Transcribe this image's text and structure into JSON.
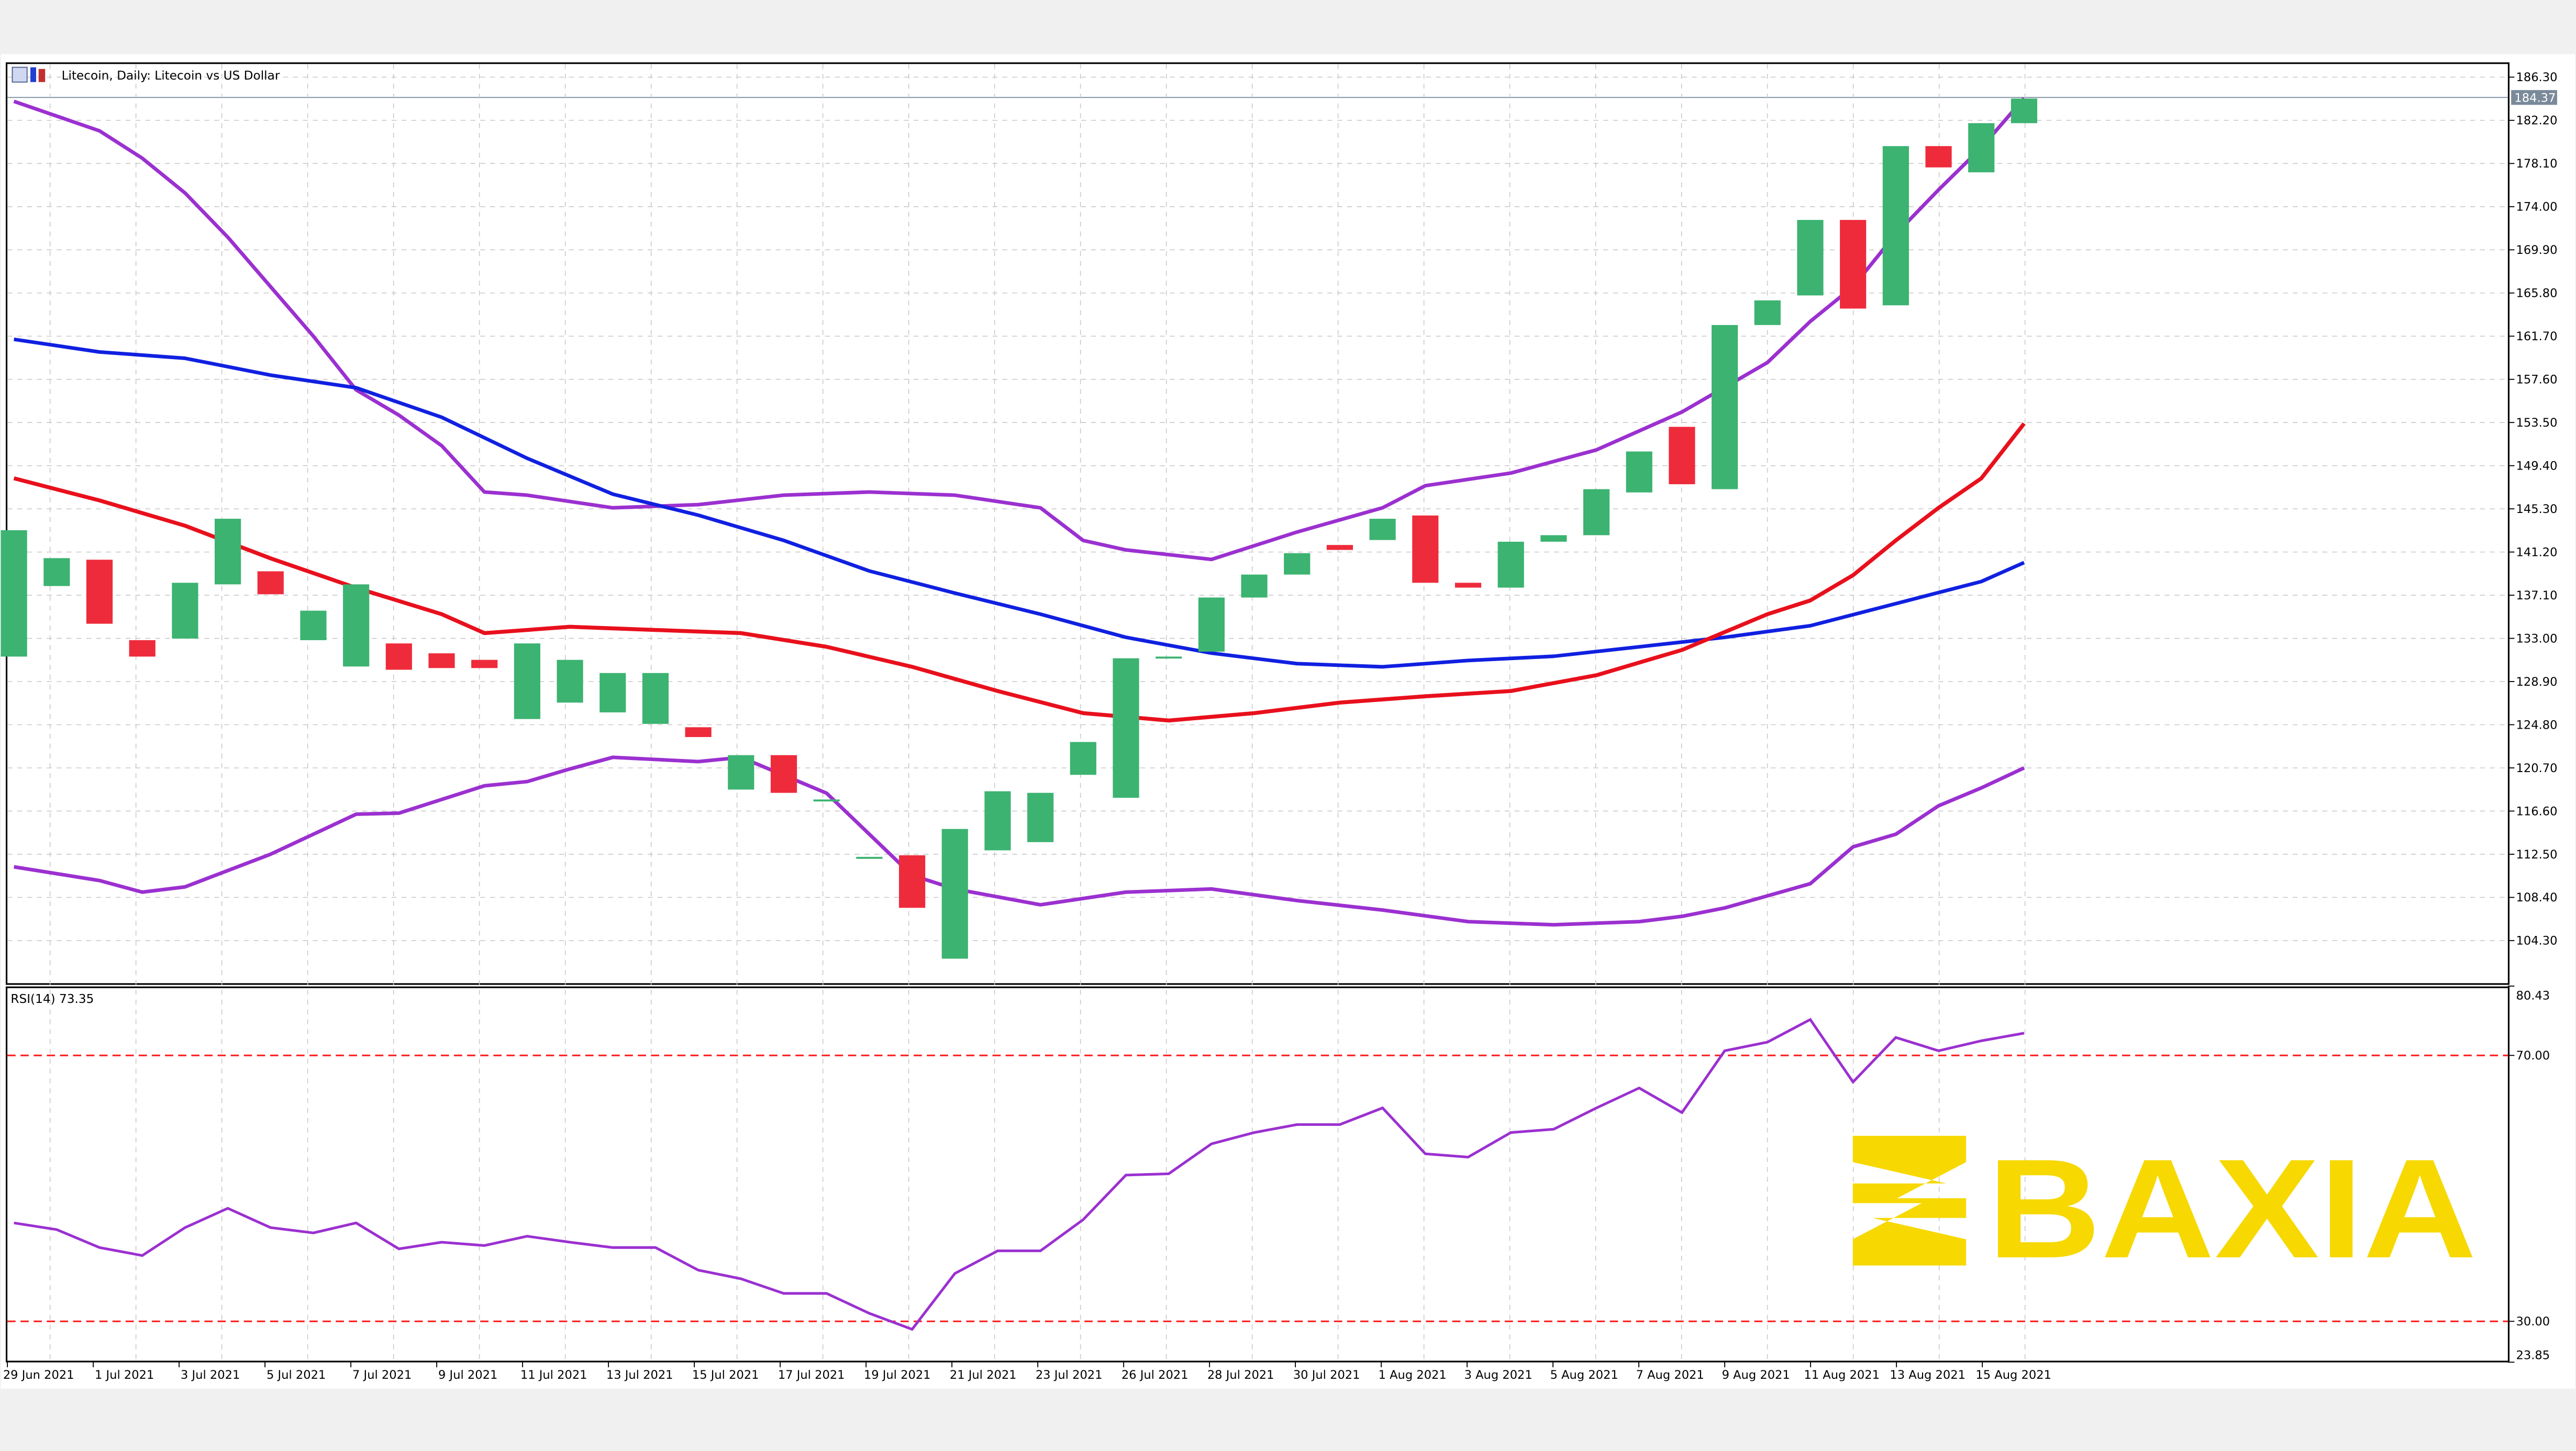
{
  "window": {
    "title": "Litecoin, Daily:  Litecoin vs US Dollar"
  },
  "colors": {
    "bull": "#3cb371",
    "bear": "#ee2b3b",
    "ma_fast": "#e8101c",
    "ma_slow": "#1020e0",
    "bollinger": "#9b30d0",
    "rsi": "#9b30d0",
    "rsi_levels": "#ff2020",
    "logo": "#f7d800"
  },
  "logo": {
    "text": "BAXIA"
  },
  "chart_data": [
    {
      "type": "candlestick",
      "title": "Litecoin, Daily:  Litecoin vs US Dollar",
      "ylim": [
        101.0,
        187.5
      ],
      "price_ticks": [
        "186.30",
        "182.20",
        "178.10",
        "174.00",
        "169.90",
        "165.80",
        "161.70",
        "157.60",
        "153.50",
        "149.40",
        "145.30",
        "141.20",
        "137.10",
        "133.00",
        "128.90",
        "124.80",
        "120.70",
        "116.60",
        "112.50",
        "108.40",
        "104.30"
      ],
      "current_price": "184.37",
      "date_labels": [
        "29 Jun 2021",
        "1 Jul 2021",
        "3 Jul 2021",
        "5 Jul 2021",
        "7 Jul 2021",
        "9 Jul 2021",
        "11 Jul 2021",
        "13 Jul 2021",
        "15 Jul 2021",
        "17 Jul 2021",
        "19 Jul 2021",
        "21 Jul 2021",
        "23 Jul 2021",
        "26 Jul 2021",
        "28 Jul 2021",
        "30 Jul 2021",
        "1 Aug 2021",
        "3 Aug 2021",
        "5 Aug 2021",
        "7 Aug 2021",
        "9 Aug 2021",
        "11 Aug 2021",
        "13 Aug 2021",
        "15 Aug 2021"
      ],
      "candles": [
        {
          "o": 131.27,
          "c": 143.27
        },
        {
          "o": 137.97,
          "c": 140.62
        },
        {
          "o": 140.47,
          "c": 134.39
        },
        {
          "o": 132.83,
          "c": 131.27
        },
        {
          "o": 132.98,
          "c": 138.28
        },
        {
          "o": 138.13,
          "c": 144.36
        },
        {
          "o": 139.37,
          "c": 137.19
        },
        {
          "o": 132.83,
          "c": 135.63
        },
        {
          "o": 130.33,
          "c": 138.13
        },
        {
          "o": 132.52,
          "c": 130.02
        },
        {
          "o": 131.58,
          "c": 130.18
        },
        {
          "o": 130.96,
          "c": 130.18
        },
        {
          "o": 125.34,
          "c": 132.52
        },
        {
          "o": 126.9,
          "c": 130.96
        },
        {
          "o": 125.97,
          "c": 129.71
        },
        {
          "o": 124.88,
          "c": 129.71
        },
        {
          "o": 124.56,
          "c": 123.63
        },
        {
          "o": 118.64,
          "c": 121.91
        },
        {
          "o": 121.91,
          "c": 118.33
        },
        {
          "o": 117.7,
          "c": 117.7
        },
        {
          "o": 112.25,
          "c": 112.25
        },
        {
          "o": 112.4,
          "c": 107.41
        },
        {
          "o": 102.58,
          "c": 114.9
        },
        {
          "o": 112.87,
          "c": 118.48
        },
        {
          "o": 113.65,
          "c": 118.33
        },
        {
          "o": 120.04,
          "c": 123.16
        },
        {
          "o": 117.86,
          "c": 131.11
        },
        {
          "o": 131.27,
          "c": 131.27
        },
        {
          "o": 131.74,
          "c": 136.88
        },
        {
          "o": 136.88,
          "c": 139.06
        },
        {
          "o": 139.06,
          "c": 141.09
        },
        {
          "o": 141.87,
          "c": 141.4
        },
        {
          "o": 142.34,
          "c": 144.36
        },
        {
          "o": 144.67,
          "c": 138.28
        },
        {
          "o": 138.28,
          "c": 137.82
        },
        {
          "o": 137.82,
          "c": 142.18
        },
        {
          "o": 142.18,
          "c": 142.8
        },
        {
          "o": 142.8,
          "c": 147.17
        },
        {
          "o": 146.86,
          "c": 150.75
        },
        {
          "o": 153.09,
          "c": 147.64
        },
        {
          "o": 147.17,
          "c": 162.76
        },
        {
          "o": 162.76,
          "c": 165.1
        },
        {
          "o": 165.57,
          "c": 172.74
        },
        {
          "o": 172.74,
          "c": 164.32
        },
        {
          "o": 164.63,
          "c": 179.75
        },
        {
          "o": 179.75,
          "c": 177.73
        },
        {
          "o": 177.26,
          "c": 181.93
        },
        {
          "o": 181.93,
          "c": 184.27
        }
      ],
      "ma_fast": [
        [
          0,
          148.2
        ],
        [
          2,
          146.1
        ],
        [
          4,
          143.7
        ],
        [
          6,
          140.6
        ],
        [
          8,
          137.8
        ],
        [
          10,
          135.3
        ],
        [
          11,
          133.5
        ],
        [
          13,
          134.1
        ],
        [
          15,
          133.8
        ],
        [
          17,
          133.5
        ],
        [
          19,
          132.2
        ],
        [
          21,
          130.3
        ],
        [
          23,
          128.0
        ],
        [
          25,
          125.9
        ],
        [
          27,
          125.2
        ],
        [
          29,
          125.9
        ],
        [
          31,
          126.9
        ],
        [
          33,
          127.5
        ],
        [
          35,
          128.0
        ],
        [
          37,
          129.5
        ],
        [
          39,
          131.9
        ],
        [
          41,
          135.3
        ],
        [
          42,
          136.6
        ],
        [
          43,
          139.0
        ],
        [
          44,
          142.3
        ],
        [
          45,
          145.4
        ],
        [
          46,
          148.2
        ],
        [
          47,
          153.4
        ]
      ],
      "ma_slow": [
        [
          0,
          161.4
        ],
        [
          2,
          160.2
        ],
        [
          4,
          159.6
        ],
        [
          6,
          158.0
        ],
        [
          8,
          156.8
        ],
        [
          10,
          154.0
        ],
        [
          12,
          150.1
        ],
        [
          14,
          146.7
        ],
        [
          16,
          144.7
        ],
        [
          18,
          142.3
        ],
        [
          20,
          139.4
        ],
        [
          22,
          137.3
        ],
        [
          24,
          135.3
        ],
        [
          26,
          133.1
        ],
        [
          28,
          131.6
        ],
        [
          30,
          130.6
        ],
        [
          32,
          130.3
        ],
        [
          34,
          130.9
        ],
        [
          36,
          131.3
        ],
        [
          38,
          132.2
        ],
        [
          40,
          133.1
        ],
        [
          42,
          134.2
        ],
        [
          44,
          136.3
        ],
        [
          46,
          138.4
        ],
        [
          47,
          140.2
        ]
      ],
      "bollinger_upper": [
        [
          0,
          184.0
        ],
        [
          2,
          181.2
        ],
        [
          3,
          178.6
        ],
        [
          4,
          175.3
        ],
        [
          5,
          171.1
        ],
        [
          6,
          166.4
        ],
        [
          7,
          161.7
        ],
        [
          8,
          156.6
        ],
        [
          9,
          154.2
        ],
        [
          10,
          151.3
        ],
        [
          11,
          146.9
        ],
        [
          12,
          146.6
        ],
        [
          14,
          145.4
        ],
        [
          16,
          145.7
        ],
        [
          18,
          146.6
        ],
        [
          20,
          146.9
        ],
        [
          22,
          146.6
        ],
        [
          24,
          145.4
        ],
        [
          25,
          142.3
        ],
        [
          26,
          141.4
        ],
        [
          28,
          140.5
        ],
        [
          30,
          143.1
        ],
        [
          32,
          145.4
        ],
        [
          33,
          147.5
        ],
        [
          35,
          148.7
        ],
        [
          37,
          150.9
        ],
        [
          39,
          154.5
        ],
        [
          41,
          159.2
        ],
        [
          42,
          163.1
        ],
        [
          43,
          166.4
        ],
        [
          44,
          171.4
        ],
        [
          45,
          175.6
        ],
        [
          46,
          179.6
        ],
        [
          47,
          184.3
        ]
      ],
      "bollinger_lower": [
        [
          0,
          111.3
        ],
        [
          2,
          110.0
        ],
        [
          3,
          108.9
        ],
        [
          4,
          109.4
        ],
        [
          6,
          112.5
        ],
        [
          8,
          116.3
        ],
        [
          9,
          116.4
        ],
        [
          11,
          119.0
        ],
        [
          12,
          119.4
        ],
        [
          13,
          120.6
        ],
        [
          14,
          121.7
        ],
        [
          16,
          121.3
        ],
        [
          17,
          121.7
        ],
        [
          19,
          118.3
        ],
        [
          21,
          110.5
        ],
        [
          22,
          109.2
        ],
        [
          24,
          107.7
        ],
        [
          26,
          108.9
        ],
        [
          28,
          109.2
        ],
        [
          30,
          108.1
        ],
        [
          32,
          107.2
        ],
        [
          34,
          106.1
        ],
        [
          36,
          105.8
        ],
        [
          38,
          106.1
        ],
        [
          39,
          106.6
        ],
        [
          40,
          107.4
        ],
        [
          42,
          109.7
        ],
        [
          43,
          113.2
        ],
        [
          44,
          114.4
        ],
        [
          45,
          117.1
        ],
        [
          46,
          118.8
        ],
        [
          47,
          120.7
        ]
      ]
    },
    {
      "type": "line",
      "title": "RSI(14) 73.35",
      "ylim": [
        23.85,
        80.43
      ],
      "ticks": [
        "80.43",
        "70.00",
        "30.00",
        "23.85"
      ],
      "levels": [
        70,
        30
      ],
      "values": [
        44.8,
        43.8,
        41.1,
        39.9,
        44.1,
        47.0,
        44.1,
        43.3,
        44.8,
        40.9,
        41.9,
        41.4,
        42.8,
        41.9,
        41.1,
        41.1,
        37.7,
        36.4,
        34.2,
        34.2,
        31.2,
        28.8,
        37.2,
        40.6,
        40.6,
        45.3,
        52.0,
        52.2,
        56.7,
        58.4,
        59.6,
        59.6,
        62.1,
        55.2,
        54.7,
        58.4,
        58.9,
        62.1,
        65.1,
        61.4,
        70.7,
        72.0,
        75.4,
        66.0,
        72.7,
        70.7,
        72.2,
        73.35
      ]
    }
  ]
}
